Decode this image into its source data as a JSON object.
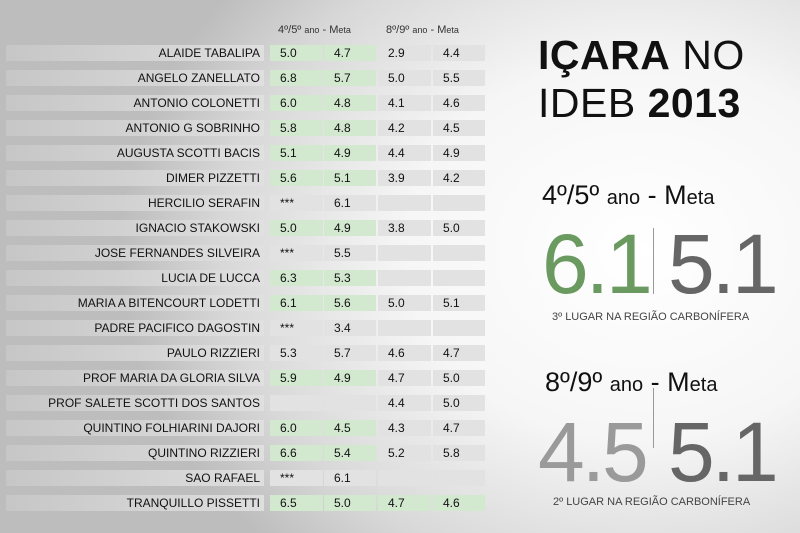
{
  "headers": {
    "group1_main": "4º/5º ",
    "group1_small": "ano",
    "group1_tail": " - M",
    "group1_small2": "eta",
    "group2_main": "8º/9º ",
    "group2_small": "ano",
    "group2_tail": " - M",
    "group2_small2": "eta"
  },
  "title": {
    "line1_bold": "IÇARA",
    "line1_rest": " NO",
    "line2_rest": "IDEB ",
    "line2_bold": "2013"
  },
  "section1": {
    "main": "4º/5º ",
    "small": "ano",
    "tail": " - M",
    "small2": "eta",
    "score": "6.1",
    "meta": "5.1",
    "rank": "3º LUGAR NA REGIÃO CARBONÍFERA"
  },
  "section2": {
    "main": "8º/9º ",
    "small": "ano",
    "tail": " - M",
    "small2": "eta",
    "score": "4.5",
    "meta": "5.1",
    "rank": "2º LUGAR NA REGIÃO CARBONÍFERA"
  },
  "colors": {
    "above_meta_green": "#d2e8cf",
    "cell_grey": "#e2e2e2",
    "score1_green": "#6a9a5f"
  },
  "schools": [
    {
      "name": "ALAIDE TABALIPA",
      "v1": "5.0",
      "m1": "4.7",
      "v2": "2.9",
      "m2": "4.4",
      "g1": true,
      "g2": false
    },
    {
      "name": "ANGELO ZANELLATO",
      "v1": "6.8",
      "m1": "5.7",
      "v2": "5.0",
      "m2": "5.5",
      "g1": true,
      "g2": false
    },
    {
      "name": "ANTONIO COLONETTI",
      "v1": "6.0",
      "m1": "4.8",
      "v2": "4.1",
      "m2": "4.6",
      "g1": true,
      "g2": false
    },
    {
      "name": "ANTONIO G SOBRINHO",
      "v1": "5.8",
      "m1": "4.8",
      "v2": "4.2",
      "m2": "4.5",
      "g1": true,
      "g2": false
    },
    {
      "name": "AUGUSTA SCOTTI BACIS",
      "v1": "5.1",
      "m1": "4.9",
      "v2": "4.4",
      "m2": "4.9",
      "g1": true,
      "g2": false
    },
    {
      "name": "DIMER PIZZETTI",
      "v1": "5.6",
      "m1": "5.1",
      "v2": "3.9",
      "m2": "4.2",
      "g1": true,
      "g2": false
    },
    {
      "name": "HERCILIO SERAFIN",
      "v1": "***",
      "m1": "6.1",
      "v2": "",
      "m2": "",
      "g1": false,
      "g2": false
    },
    {
      "name": "IGNACIO STAKOWSKI",
      "v1": "5.0",
      "m1": "4.9",
      "v2": "3.8",
      "m2": "5.0",
      "g1": true,
      "g2": false
    },
    {
      "name": "JOSE FERNANDES SILVEIRA",
      "v1": "***",
      "m1": "5.5",
      "v2": "",
      "m2": "",
      "g1": false,
      "g2": false
    },
    {
      "name": "LUCIA DE LUCCA",
      "v1": "6.3",
      "m1": "5.3",
      "v2": "",
      "m2": "",
      "g1": true,
      "g2": false
    },
    {
      "name": "MARIA A BITENCOURT LODETTI",
      "v1": "6.1",
      "m1": "5.6",
      "v2": "5.0",
      "m2": "5.1",
      "g1": true,
      "g2": false
    },
    {
      "name": "PADRE PACIFICO DAGOSTIN",
      "v1": "***",
      "m1": "3.4",
      "v2": "",
      "m2": "",
      "g1": false,
      "g2": false
    },
    {
      "name": "PAULO RIZZIERI",
      "v1": "5.3",
      "m1": "5.7",
      "v2": "4.6",
      "m2": "4.7",
      "g1": false,
      "g2": false
    },
    {
      "name": "PROF MARIA DA GLORIA SILVA",
      "v1": "5.9",
      "m1": "4.9",
      "v2": "4.7",
      "m2": "5.0",
      "g1": true,
      "g2": false
    },
    {
      "name": "PROF SALETE SCOTTI DOS SANTOS",
      "v1": "",
      "m1": "",
      "v2": "4.4",
      "m2": "5.0",
      "g1": false,
      "g2": false
    },
    {
      "name": "QUINTINO FOLHIARINI DAJORI",
      "v1": "6.0",
      "m1": "4.5",
      "v2": "4.3",
      "m2": "4.7",
      "g1": true,
      "g2": false
    },
    {
      "name": "QUINTINO RIZZIERI",
      "v1": "6.6",
      "m1": "5.4",
      "v2": "5.2",
      "m2": "5.8",
      "g1": true,
      "g2": false
    },
    {
      "name": "SAO RAFAEL",
      "v1": "***",
      "m1": "6.1",
      "v2": "",
      "m2": "",
      "g1": false,
      "g2": false
    },
    {
      "name": "TRANQUILLO PISSETTI",
      "v1": "6.5",
      "m1": "5.0",
      "v2": "4.7",
      "m2": "4.6",
      "g1": true,
      "g2": true
    }
  ]
}
